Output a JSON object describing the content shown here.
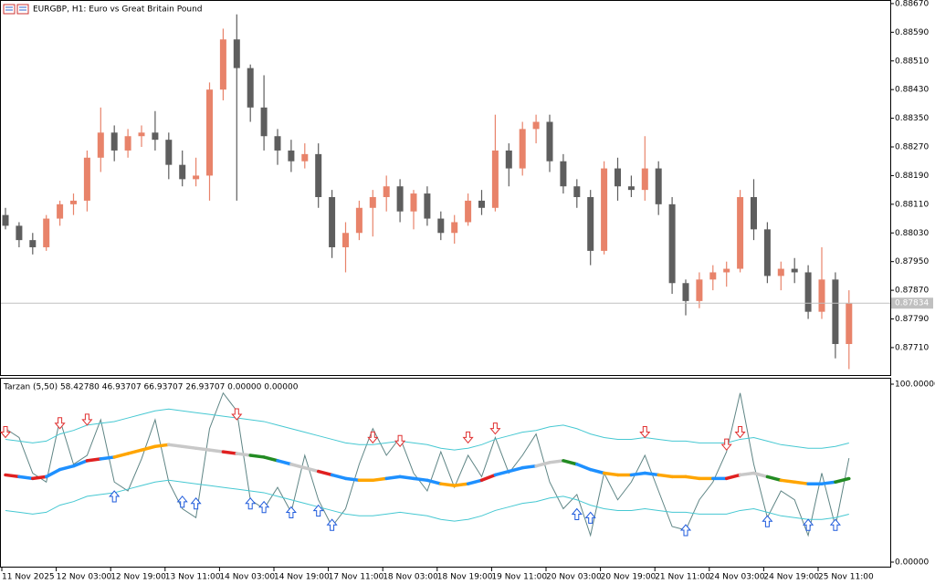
{
  "chart_data": [
    {
      "type": "candlestick",
      "title": "EURGBP, H1:  Euro vs Great Britain Pound",
      "categories": [
        "11 Nov 2025",
        null,
        null,
        null,
        "12 Nov 03:00",
        null,
        null,
        null,
        "12 Nov 19:00",
        null,
        null,
        null,
        "13 Nov 11:00",
        null,
        null,
        null,
        "14 Nov 03:00",
        null,
        null,
        null,
        "14 Nov 19:00",
        null,
        null,
        null,
        "17 Nov 11:00",
        null,
        null,
        null,
        "18 Nov 03:00",
        null,
        null,
        null,
        "18 Nov 19:00",
        null,
        null,
        null,
        "19 Nov 11:00",
        null,
        null,
        null,
        "20 Nov 03:00",
        null,
        null,
        null,
        "20 Nov 19:00",
        null,
        null,
        null,
        "21 Nov 11:00",
        null,
        null,
        null,
        "24 Nov 03:00",
        null,
        null,
        null,
        "24 Nov 19:00",
        null,
        null,
        null,
        "25 Nov 11:00",
        null,
        null
      ],
      "open": [
        0.8808,
        0.8805,
        0.8801,
        0.8799,
        0.8807,
        0.8811,
        0.8812,
        0.8824,
        0.8831,
        0.8826,
        0.883,
        0.8831,
        0.8829,
        0.8822,
        0.8818,
        0.8819,
        0.8843,
        0.8857,
        0.8849,
        0.8838,
        0.883,
        0.8826,
        0.8823,
        0.8825,
        0.8813,
        0.8799,
        0.8803,
        0.881,
        0.8813,
        0.8816,
        0.8809,
        0.8814,
        0.8807,
        0.8803,
        0.8806,
        0.8812,
        0.881,
        0.8826,
        0.8821,
        0.8832,
        0.8834,
        0.8823,
        0.8816,
        0.8813,
        0.8798,
        0.8821,
        0.8816,
        0.8815,
        0.8821,
        0.8811,
        0.8789,
        0.8784,
        0.879,
        0.8792,
        0.8793,
        0.8813,
        0.8804,
        0.8791,
        0.8793,
        0.8792,
        0.8781,
        0.879,
        0.8772
      ],
      "high": [
        0.881,
        0.8806,
        0.8803,
        0.8808,
        0.8812,
        0.8814,
        0.8826,
        0.8838,
        0.8833,
        0.8832,
        0.8833,
        0.8837,
        0.8831,
        0.8826,
        0.8824,
        0.8845,
        0.886,
        0.8864,
        0.885,
        0.8847,
        0.8832,
        0.8829,
        0.8828,
        0.8828,
        0.8815,
        0.8806,
        0.8812,
        0.8815,
        0.8819,
        0.8818,
        0.8815,
        0.8816,
        0.8809,
        0.8808,
        0.8814,
        0.8815,
        0.8836,
        0.8828,
        0.8834,
        0.8836,
        0.8836,
        0.8825,
        0.8818,
        0.8815,
        0.8823,
        0.8824,
        0.8819,
        0.883,
        0.8823,
        0.8813,
        0.879,
        0.8792,
        0.8794,
        0.8795,
        0.8815,
        0.8818,
        0.8806,
        0.8795,
        0.8796,
        0.8794,
        0.8799,
        0.8792,
        0.8787
      ],
      "low": [
        0.8804,
        0.8799,
        0.8797,
        0.8798,
        0.8805,
        0.8808,
        0.8809,
        0.882,
        0.8823,
        0.8824,
        0.8827,
        0.8826,
        0.8818,
        0.8816,
        0.8816,
        0.8812,
        0.884,
        0.8812,
        0.8834,
        0.8826,
        0.8822,
        0.882,
        0.8821,
        0.881,
        0.8796,
        0.8792,
        0.8801,
        0.8802,
        0.8809,
        0.8806,
        0.8804,
        0.8805,
        0.8801,
        0.88,
        0.8805,
        0.8808,
        0.8809,
        0.8816,
        0.8819,
        0.8828,
        0.882,
        0.8814,
        0.881,
        0.8794,
        0.8797,
        0.8812,
        0.8813,
        0.8812,
        0.8808,
        0.8786,
        0.878,
        0.8782,
        0.8787,
        0.8788,
        0.8792,
        0.8801,
        0.8789,
        0.8787,
        0.8789,
        0.8779,
        0.8779,
        0.8768,
        0.8765
      ],
      "close": [
        0.8805,
        0.8801,
        0.8799,
        0.8807,
        0.8811,
        0.8812,
        0.8824,
        0.8831,
        0.8826,
        0.883,
        0.8831,
        0.8829,
        0.8822,
        0.8818,
        0.8819,
        0.8843,
        0.8857,
        0.8849,
        0.8838,
        0.883,
        0.8826,
        0.8823,
        0.8825,
        0.8813,
        0.8799,
        0.8803,
        0.881,
        0.8813,
        0.8816,
        0.8809,
        0.8814,
        0.8807,
        0.8803,
        0.8806,
        0.8812,
        0.881,
        0.8826,
        0.8821,
        0.8832,
        0.8834,
        0.8823,
        0.8816,
        0.8813,
        0.8798,
        0.8821,
        0.8816,
        0.8815,
        0.8821,
        0.8811,
        0.8789,
        0.8784,
        0.879,
        0.8792,
        0.8793,
        0.8813,
        0.8804,
        0.8791,
        0.8793,
        0.8792,
        0.8781,
        0.879,
        0.8772,
        0.87834
      ],
      "up_color": "#e8836a",
      "down_color": "#5e5e5e",
      "ylim": [
        0.87636,
        0.8868
      ],
      "yticks": [
        {
          "value": 0.8867,
          "label": "0.88670"
        },
        {
          "value": 0.8859,
          "label": "0.88590"
        },
        {
          "value": 0.8851,
          "label": "0.88510"
        },
        {
          "value": 0.8843,
          "label": "0.88430"
        },
        {
          "value": 0.8835,
          "label": "0.88350"
        },
        {
          "value": 0.8827,
          "label": "0.88270"
        },
        {
          "value": 0.8819,
          "label": "0.88190"
        },
        {
          "value": 0.8811,
          "label": "0.88110"
        },
        {
          "value": 0.8803,
          "label": "0.88030"
        },
        {
          "value": 0.8795,
          "label": "0.87950"
        },
        {
          "value": 0.8787,
          "label": "0.87870"
        },
        {
          "value": 0.8779,
          "label": "0.87790"
        },
        {
          "value": 0.8771,
          "label": "0.87710"
        }
      ],
      "last_price": 0.87834
    },
    {
      "type": "line",
      "title": "Tarzan (5,50) 58.42780 46.93707 66.93707 26.93707 0.00000 0.00000",
      "ylim": [
        -3.08,
        103.08
      ],
      "yticks": [
        {
          "value": 100,
          "label": "100.00000"
        },
        {
          "value": 0,
          "label": "0.00000"
        }
      ],
      "series": [
        {
          "color": "#5f8585",
          "values": [
            75,
            70,
            50,
            45,
            80,
            55,
            60,
            80,
            45,
            40,
            58,
            80,
            45,
            30,
            25,
            75,
            95,
            85,
            35,
            30,
            42,
            28,
            60,
            35,
            20,
            30,
            55,
            75,
            60,
            70,
            50,
            40,
            62,
            42,
            60,
            48,
            70,
            50,
            60,
            72,
            45,
            30,
            38,
            15,
            50,
            35,
            45,
            60,
            40,
            20,
            18,
            35,
            45,
            62,
            95,
            55,
            25,
            40,
            35,
            15,
            50,
            20,
            58.4278
          ]
        },
        {
          "color": "#46c8d2",
          "values": [
            69,
            68,
            67,
            68,
            72,
            74,
            77,
            78,
            79,
            81,
            83,
            85,
            86,
            85,
            84,
            83,
            82,
            81,
            80,
            79,
            77,
            75,
            73,
            71,
            69,
            67,
            66,
            66,
            67,
            68,
            67,
            66,
            64,
            63,
            64,
            66,
            69,
            71,
            73,
            74,
            76,
            77,
            75,
            72,
            70,
            69,
            69,
            70,
            69,
            68,
            68,
            67,
            67,
            67,
            69,
            70,
            68,
            66,
            65,
            64,
            64,
            65,
            66.93707
          ]
        },
        {
          "color": "#46c8d2",
          "values": [
            29,
            28,
            27,
            28,
            32,
            34,
            37,
            38,
            39,
            41,
            43,
            45,
            46,
            45,
            44,
            43,
            42,
            41,
            40,
            39,
            37,
            35,
            33,
            31,
            29,
            27,
            26,
            26,
            27,
            28,
            27,
            26,
            24,
            23,
            24,
            26,
            29,
            31,
            33,
            34,
            36,
            37,
            35,
            32,
            30,
            29,
            29,
            30,
            29,
            28,
            28,
            27,
            27,
            27,
            29,
            30,
            28,
            26,
            25,
            24,
            24,
            25,
            26.93707
          ]
        },
        {
          "colors": [
            "#e02020",
            "#1e90ff",
            "#e02020",
            "#1e90ff",
            "#1e90ff",
            "#1e90ff",
            "#e02020",
            "#1e90ff",
            "#ffa500",
            "#ffa500",
            "#ffa500",
            "#ffa500",
            "#c8c8c8",
            "#c8c8c8",
            "#c8c8c8",
            "#c8c8c8",
            "#e02020",
            "#c8c8c8",
            "#228b22",
            "#228b22",
            "#1e90ff",
            "#c8c8c8",
            "#c8c8c8",
            "#e02020",
            "#1e90ff",
            "#1e90ff",
            "#ffa500",
            "#ffa500",
            "#1e90ff",
            "#1e90ff",
            "#1e90ff",
            "#1e90ff",
            "#ffa500",
            "#ffa500",
            "#1e90ff",
            "#e02020",
            "#1e90ff",
            "#1e90ff",
            "#1e90ff",
            "#c8c8c8",
            "#c8c8c8",
            "#228b22",
            "#1e90ff",
            "#1e90ff",
            "#ffa500",
            "#ffa500",
            "#1e90ff",
            "#1e90ff",
            "#ffa500",
            "#ffa500",
            "#ffa500",
            "#ffa500",
            "#1e90ff",
            "#e02020",
            "#c8c8c8",
            "#c8c8c8",
            "#228b22",
            "#ffa500",
            "#ffa500",
            "#1e90ff",
            "#1e90ff",
            "#228b22",
            "#1e90ff"
          ],
          "values": [
            49,
            48,
            47,
            48,
            52,
            54,
            57,
            58,
            59,
            61,
            63,
            65,
            66,
            65,
            64,
            63,
            62,
            61,
            60,
            59,
            57,
            55,
            53,
            51,
            49,
            47,
            46,
            46,
            47,
            48,
            47,
            46,
            44,
            43,
            44,
            46,
            49,
            51,
            53,
            54,
            56,
            57,
            55,
            52,
            50,
            49,
            49,
            50,
            49,
            48,
            48,
            47,
            47,
            47,
            49,
            50,
            48,
            46,
            45,
            44,
            44,
            45,
            46.93707
          ]
        },
        {
          "color": "#1e5adc",
          "marker": "up-arrow",
          "values": [
            null,
            null,
            null,
            null,
            null,
            null,
            null,
            null,
            40,
            null,
            null,
            null,
            null,
            37,
            36,
            null,
            null,
            null,
            36,
            34,
            null,
            31,
            null,
            32,
            24,
            null,
            null,
            null,
            null,
            null,
            null,
            null,
            null,
            null,
            null,
            null,
            null,
            null,
            null,
            null,
            null,
            null,
            30,
            28,
            null,
            null,
            null,
            null,
            null,
            null,
            21,
            null,
            null,
            null,
            null,
            null,
            26,
            null,
            null,
            24,
            null,
            24,
            null
          ]
        },
        {
          "color": "#e03030",
          "marker": "down-arrow",
          "values": [
            70,
            null,
            null,
            null,
            75,
            null,
            77,
            null,
            null,
            null,
            null,
            null,
            null,
            null,
            null,
            null,
            null,
            80,
            null,
            null,
            null,
            null,
            null,
            null,
            null,
            null,
            null,
            67,
            null,
            65,
            null,
            null,
            null,
            null,
            67,
            null,
            72,
            null,
            null,
            null,
            null,
            null,
            null,
            null,
            null,
            null,
            null,
            70,
            null,
            null,
            null,
            null,
            null,
            63,
            70,
            null,
            null,
            null,
            null,
            null,
            null,
            null,
            null
          ]
        }
      ]
    }
  ]
}
